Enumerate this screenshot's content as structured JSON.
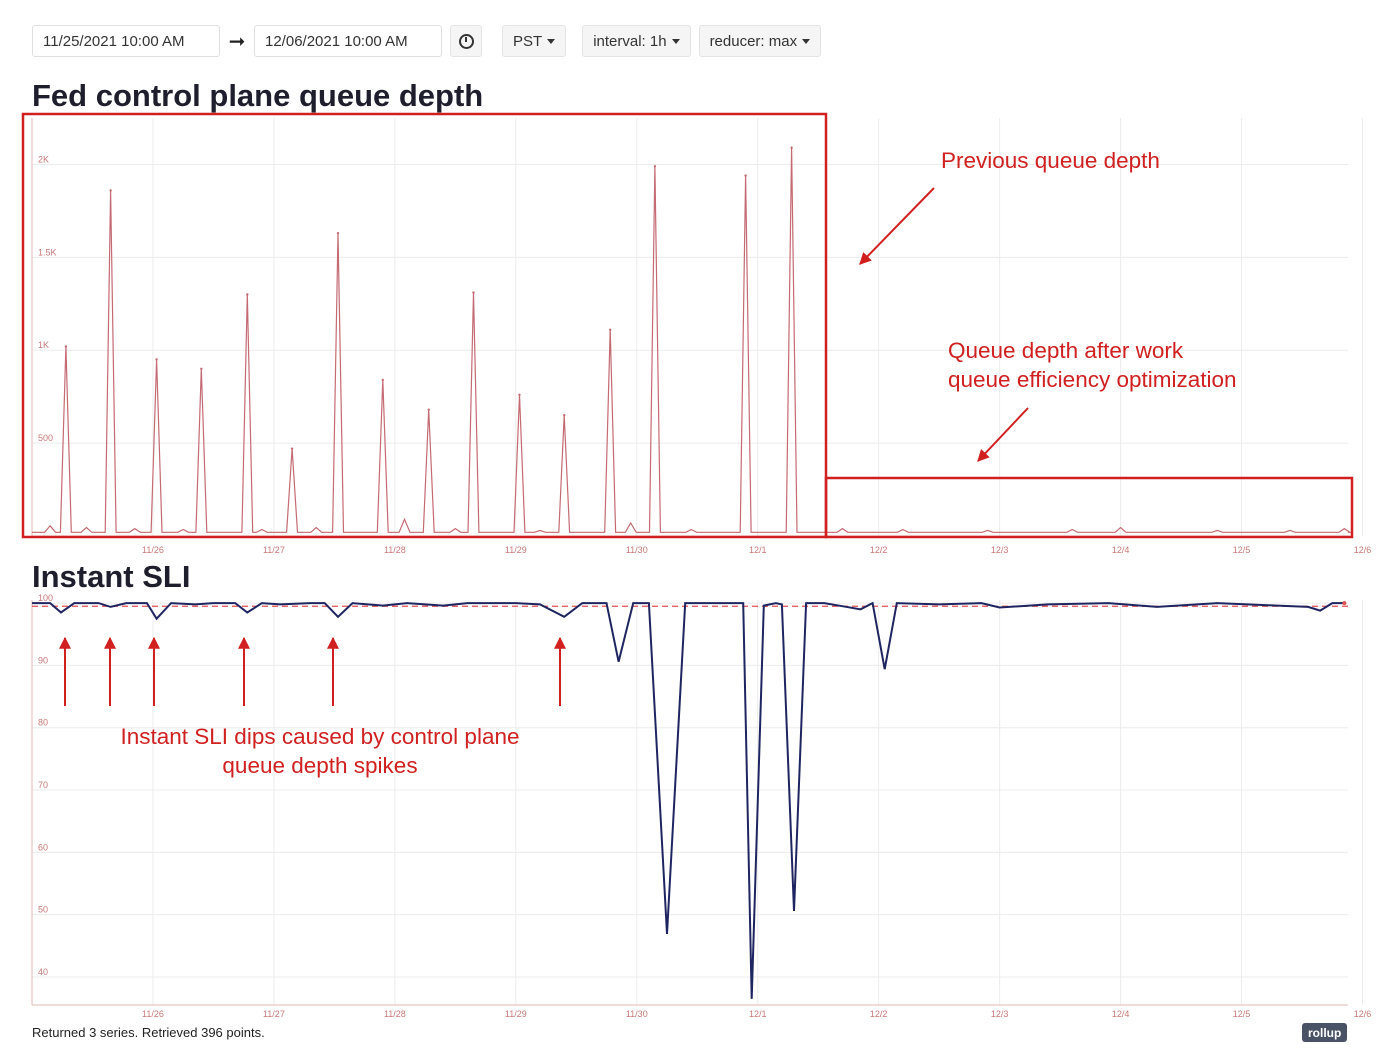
{
  "toolbar": {
    "start_datetime": "11/25/2021 10:00 AM",
    "end_datetime": "12/06/2021 10:00 AM",
    "arrow": "➞",
    "timezone": "PST",
    "interval": "interval: 1h",
    "reducer": "reducer: max"
  },
  "status": {
    "message": "Returned 3 series. Retrieved 396 points.",
    "rollup_badge": "rollup"
  },
  "annotations": {
    "previous": "Previous queue depth",
    "after_line1": "Queue depth after work",
    "after_line2": "queue efficiency optimization",
    "dips_line1": "Instant SLI dips caused by control plane",
    "dips_line2": "queue depth spikes"
  },
  "colors": {
    "annotation": "#d02020",
    "queue_line": "#c46a72",
    "sli_line": "#1f2560",
    "threshold": "#e05050",
    "grid": "#ececec",
    "tick_label": "#c87878"
  },
  "chart_data": [
    {
      "type": "line",
      "title": "Fed control plane queue depth",
      "x_ticks": [
        "11/26",
        "11/27",
        "11/28",
        "11/29",
        "11/30",
        "12/1",
        "12/2",
        "12/3",
        "12/4",
        "12/5",
        "12/6"
      ],
      "y_ticks": [
        {
          "value": 500,
          "label": "500"
        },
        {
          "value": 1000,
          "label": "1K"
        },
        {
          "value": 1500,
          "label": "1.5K"
        },
        {
          "value": 2000,
          "label": "2K"
        }
      ],
      "xlim": [
        0,
        10.88
      ],
      "ylim": [
        0,
        2250
      ],
      "grid": true,
      "series": [
        {
          "baseline": 20,
          "spikes": [
            {
              "x": 0.28,
              "y": 1020
            },
            {
              "x": 0.65,
              "y": 1860
            },
            {
              "x": 1.03,
              "y": 950
            },
            {
              "x": 1.4,
              "y": 900
            },
            {
              "x": 1.78,
              "y": 1300
            },
            {
              "x": 2.15,
              "y": 470
            },
            {
              "x": 2.53,
              "y": 1630
            },
            {
              "x": 2.9,
              "y": 840
            },
            {
              "x": 3.28,
              "y": 680
            },
            {
              "x": 3.65,
              "y": 1310
            },
            {
              "x": 4.03,
              "y": 760
            },
            {
              "x": 4.4,
              "y": 650
            },
            {
              "x": 4.78,
              "y": 1110
            },
            {
              "x": 5.15,
              "y": 1990
            },
            {
              "x": 5.9,
              "y": 1940
            },
            {
              "x": 6.28,
              "y": 2090
            }
          ],
          "bumps": [
            {
              "x": 0.15,
              "y": 55
            },
            {
              "x": 0.45,
              "y": 45
            },
            {
              "x": 0.85,
              "y": 40
            },
            {
              "x": 1.25,
              "y": 35
            },
            {
              "x": 1.9,
              "y": 35
            },
            {
              "x": 2.35,
              "y": 45
            },
            {
              "x": 3.08,
              "y": 90
            },
            {
              "x": 3.5,
              "y": 40
            },
            {
              "x": 4.2,
              "y": 30
            },
            {
              "x": 4.95,
              "y": 70
            },
            {
              "x": 5.45,
              "y": 35
            },
            {
              "x": 6.7,
              "y": 40
            },
            {
              "x": 7.2,
              "y": 35
            },
            {
              "x": 7.9,
              "y": 30
            },
            {
              "x": 8.6,
              "y": 35
            },
            {
              "x": 9.0,
              "y": 45
            },
            {
              "x": 9.8,
              "y": 30
            },
            {
              "x": 10.4,
              "y": 30
            },
            {
              "x": 10.85,
              "y": 40
            }
          ]
        }
      ]
    },
    {
      "type": "line",
      "title": "Instant SLI",
      "x_ticks": [
        "11/26",
        "11/27",
        "11/28",
        "11/29",
        "11/30",
        "12/1",
        "12/2",
        "12/3",
        "12/4",
        "12/5",
        "12/6"
      ],
      "y_ticks": [
        {
          "value": 40,
          "label": "40"
        },
        {
          "value": 50,
          "label": "50"
        },
        {
          "value": 60,
          "label": "60"
        },
        {
          "value": 70,
          "label": "70"
        },
        {
          "value": 80,
          "label": "80"
        },
        {
          "value": 90,
          "label": "90"
        },
        {
          "value": 100,
          "label": "100"
        }
      ],
      "xlim": [
        0,
        10.88
      ],
      "ylim": [
        35.5,
        100.5
      ],
      "threshold": 99.5,
      "grid": true,
      "series": [
        {
          "points": [
            [
              0.0,
              100
            ],
            [
              0.15,
              100
            ],
            [
              0.24,
              98.5
            ],
            [
              0.35,
              100
            ],
            [
              0.55,
              100
            ],
            [
              0.65,
              99.4
            ],
            [
              0.78,
              100
            ],
            [
              0.95,
              100
            ],
            [
              1.03,
              97.5
            ],
            [
              1.15,
              100
            ],
            [
              1.35,
              99.8
            ],
            [
              1.5,
              100
            ],
            [
              1.68,
              100
            ],
            [
              1.78,
              98.5
            ],
            [
              1.9,
              100
            ],
            [
              2.05,
              99.8
            ],
            [
              2.3,
              100
            ],
            [
              2.42,
              100
            ],
            [
              2.53,
              97.8
            ],
            [
              2.65,
              100
            ],
            [
              2.9,
              99.6
            ],
            [
              3.1,
              100
            ],
            [
              3.4,
              99.6
            ],
            [
              3.6,
              100
            ],
            [
              4.0,
              100
            ],
            [
              4.2,
              99.8
            ],
            [
              4.4,
              97.8
            ],
            [
              4.55,
              100
            ],
            [
              4.75,
              100
            ],
            [
              4.85,
              90.6
            ],
            [
              4.97,
              100
            ],
            [
              5.1,
              100
            ],
            [
              5.25,
              46.9
            ],
            [
              5.4,
              100
            ],
            [
              5.65,
              100
            ],
            [
              5.88,
              100
            ],
            [
              5.95,
              36.5
            ],
            [
              6.05,
              99.6
            ],
            [
              6.15,
              100
            ],
            [
              6.2,
              99.8
            ],
            [
              6.3,
              50.6
            ],
            [
              6.4,
              100
            ],
            [
              6.55,
              100
            ],
            [
              6.7,
              99.5
            ],
            [
              6.85,
              99.0
            ],
            [
              6.95,
              100
            ],
            [
              7.05,
              89.4
            ],
            [
              7.15,
              100
            ],
            [
              7.5,
              99.8
            ],
            [
              7.85,
              100
            ],
            [
              8.0,
              99.3
            ],
            [
              8.4,
              99.8
            ],
            [
              8.9,
              100
            ],
            [
              9.3,
              99.4
            ],
            [
              9.8,
              100
            ],
            [
              10.3,
              99.6
            ],
            [
              10.55,
              99.4
            ],
            [
              10.65,
              98.8
            ],
            [
              10.75,
              100
            ],
            [
              10.85,
              100
            ]
          ]
        }
      ]
    }
  ]
}
